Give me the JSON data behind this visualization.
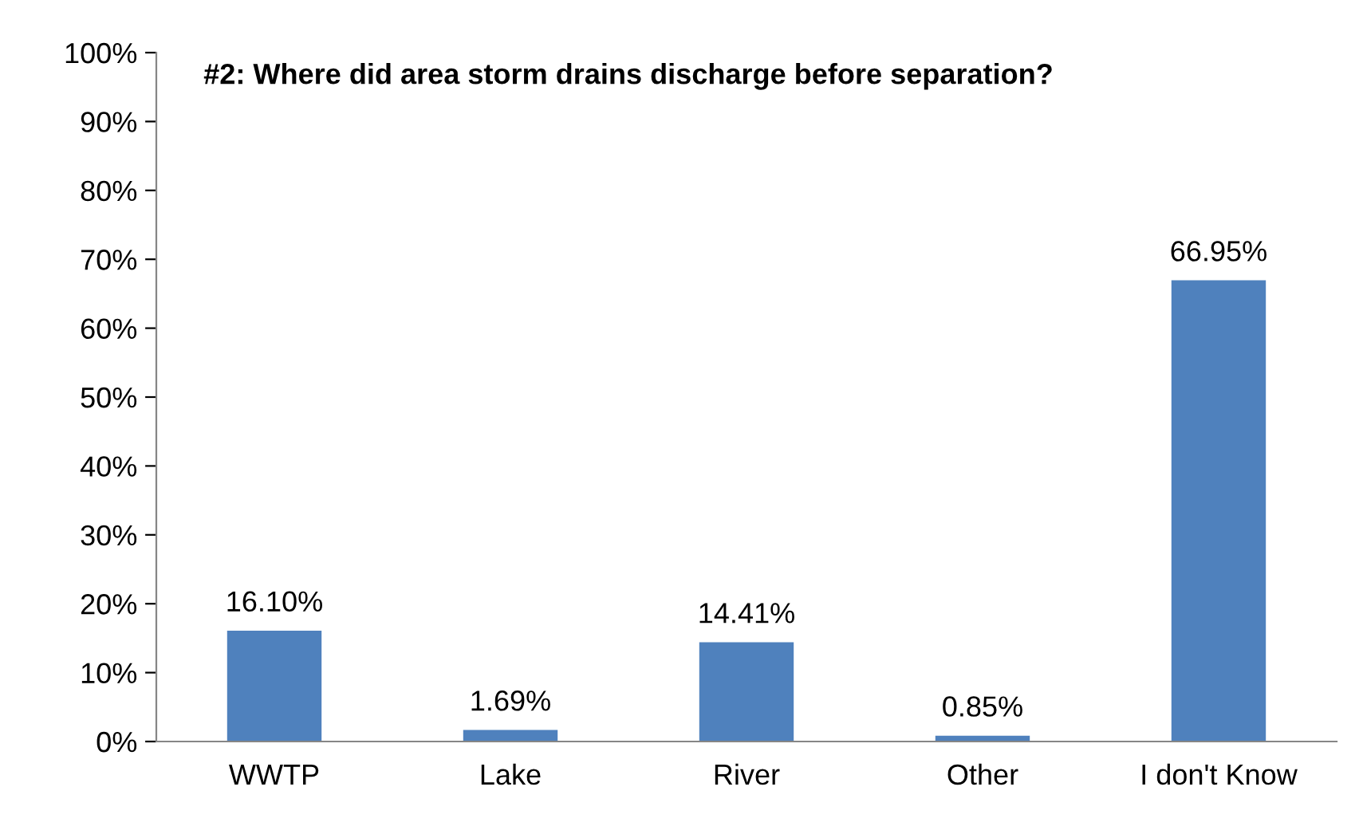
{
  "chart_data": {
    "type": "bar",
    "title": "#2: Where did area storm drains discharge before separation?",
    "categories": [
      "WWTP",
      "Lake",
      "River",
      "Other",
      "I don't Know"
    ],
    "values": [
      16.1,
      1.69,
      14.41,
      0.85,
      66.95
    ],
    "value_labels": [
      "16.10%",
      "1.69%",
      "14.41%",
      "0.85%",
      "66.95%"
    ],
    "color": "#4f81bd",
    "ylim": [
      0,
      100
    ],
    "yticks": [
      {
        "value": 0,
        "label": "0%"
      },
      {
        "value": 10,
        "label": "10%"
      },
      {
        "value": 20,
        "label": "20%"
      },
      {
        "value": 30,
        "label": "30%"
      },
      {
        "value": 40,
        "label": "40%"
      },
      {
        "value": 50,
        "label": "50%"
      },
      {
        "value": 60,
        "label": "60%"
      },
      {
        "value": 70,
        "label": "70%"
      },
      {
        "value": 80,
        "label": "80%"
      },
      {
        "value": 90,
        "label": "90%"
      },
      {
        "value": 100,
        "label": "100%"
      }
    ],
    "grid": false,
    "legend": false
  }
}
